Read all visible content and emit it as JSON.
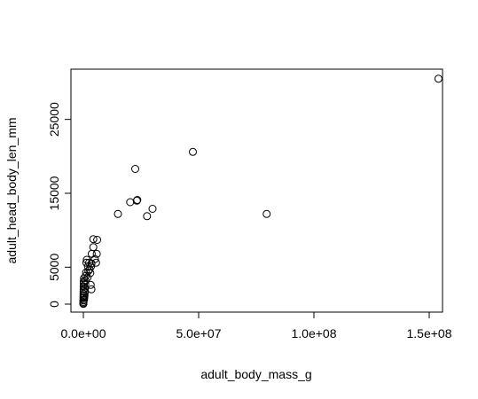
{
  "chart_data": {
    "type": "scatter",
    "title": "",
    "xlabel": "adult_body_mass_g",
    "ylabel": "adult_head_body_len_mm",
    "xlim": [
      0,
      155000000
    ],
    "ylim": [
      0,
      30500
    ],
    "x_ticks": [
      0,
      50000000,
      100000000,
      150000000
    ],
    "x_tick_labels": [
      "0.0e+00",
      "5.0e+07",
      "1.0e+08",
      "1.5e+08"
    ],
    "y_ticks": [
      0,
      5000,
      15000,
      25000
    ],
    "y_tick_labels": [
      "0",
      "5000",
      "15000",
      "25000"
    ],
    "grid": false,
    "marker": "open-circle",
    "points": [
      [
        154000000,
        30500
      ],
      [
        79500000,
        12200
      ],
      [
        47500000,
        20600
      ],
      [
        30000000,
        12900
      ],
      [
        27600000,
        11900
      ],
      [
        23400000,
        14100
      ],
      [
        23200000,
        14000
      ],
      [
        22500000,
        18300
      ],
      [
        20300000,
        13800
      ],
      [
        15000000,
        12200
      ],
      [
        6000000,
        8700
      ],
      [
        5800000,
        6800
      ],
      [
        5500000,
        5600
      ],
      [
        5000000,
        6100
      ],
      [
        4300000,
        8800
      ],
      [
        4300000,
        7700
      ],
      [
        3600000,
        6800
      ],
      [
        3500000,
        5500
      ],
      [
        3300000,
        5100
      ],
      [
        3000000,
        4200
      ],
      [
        3200000,
        2600
      ],
      [
        3500000,
        2000
      ],
      [
        2700000,
        4700
      ],
      [
        2500000,
        5600
      ],
      [
        2200000,
        4500
      ],
      [
        2000000,
        5100
      ],
      [
        1800000,
        3600
      ],
      [
        1500000,
        6000
      ],
      [
        1300000,
        5600
      ],
      [
        1200000,
        4300
      ],
      [
        1000000,
        3800
      ],
      [
        900000,
        3200
      ],
      [
        800000,
        2700
      ],
      [
        700000,
        2100
      ],
      [
        600000,
        1600
      ],
      [
        500000,
        1200
      ],
      [
        400000,
        900
      ],
      [
        300000,
        600
      ],
      [
        250000,
        3500
      ],
      [
        200000,
        3100
      ],
      [
        150000,
        2800
      ],
      [
        120000,
        2400
      ],
      [
        100000,
        2000
      ],
      [
        80000,
        1700
      ],
      [
        60000,
        1400
      ],
      [
        40000,
        1100
      ],
      [
        30000,
        800
      ],
      [
        20000,
        500
      ],
      [
        15000,
        300
      ],
      [
        10000,
        150
      ],
      [
        5000,
        80
      ],
      [
        2000,
        40
      ]
    ]
  }
}
